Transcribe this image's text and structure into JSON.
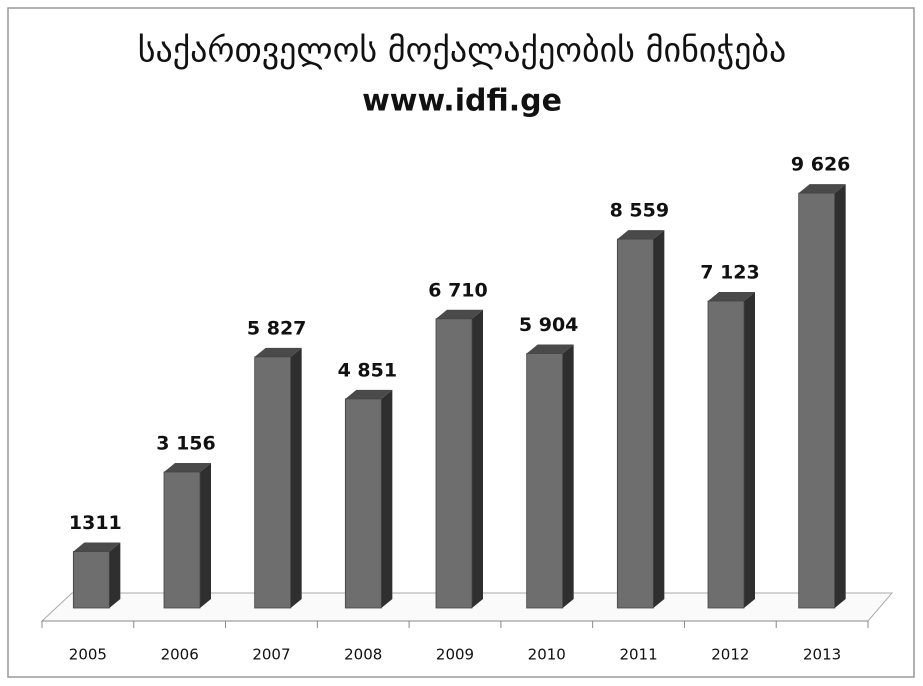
{
  "chart_data": {
    "type": "bar",
    "title": "საქართველოს მოქალაქეობის მინიჭება",
    "subtitle": "www.idfi.ge",
    "categories": [
      "2005",
      "2006",
      "2007",
      "2008",
      "2009",
      "2010",
      "2011",
      "2012",
      "2013"
    ],
    "values": [
      1311,
      3156,
      5827,
      4851,
      6710,
      5904,
      8559,
      7123,
      9626
    ],
    "value_labels": [
      "1311",
      "3 156",
      "5 827",
      "4 851",
      "6 710",
      "5 904",
      "8 559",
      "7 123",
      "9 626"
    ],
    "color": "#6e6e6e",
    "ylim": [
      0,
      10000
    ]
  }
}
